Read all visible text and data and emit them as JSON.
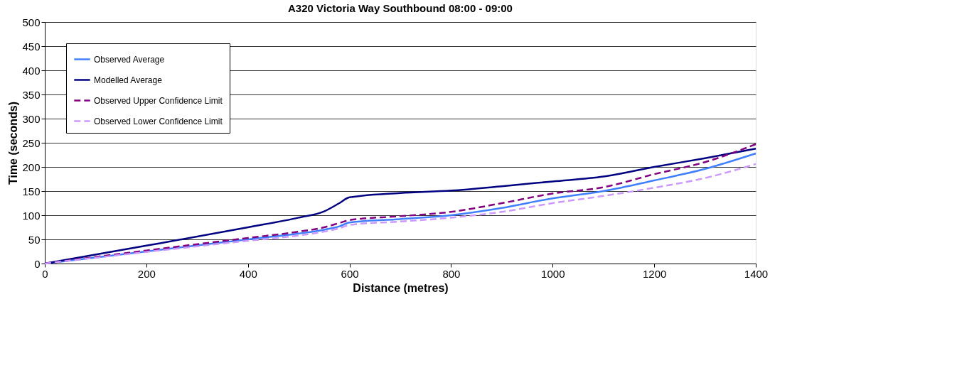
{
  "chart_data": {
    "type": "line",
    "title": "A320 Victoria Way Southbound 08:00  - 09:00",
    "xlabel": "Distance (metres)",
    "ylabel": "Time (seconds)",
    "x": [
      0,
      200,
      400,
      500,
      550,
      580,
      600,
      700,
      800,
      900,
      1000,
      1100,
      1200,
      1300,
      1400
    ],
    "series": [
      {
        "name": "Observed Average",
        "color": "#3f7fff",
        "line_style": "solid",
        "values": [
          0,
          25,
          50,
          62,
          70,
          77,
          85,
          92,
          100,
          115,
          135,
          150,
          172,
          196,
          228
        ]
      },
      {
        "name": "Modelled Average",
        "color": "#000080",
        "line_style": "solid",
        "values": [
          0,
          37,
          75,
          95,
          108,
          125,
          137,
          146,
          151,
          160,
          170,
          180,
          200,
          218,
          238
        ]
      },
      {
        "name": "Observed Upper Confidence Limit",
        "color": "#800080",
        "line_style": "dashed",
        "values": [
          0,
          27,
          53,
          66,
          75,
          84,
          90,
          98,
          107,
          125,
          145,
          158,
          185,
          210,
          247
        ]
      },
      {
        "name": "Observed Lower Confidence Limit",
        "color": "#cc99ff",
        "line_style": "dashed",
        "values": [
          0,
          24,
          47,
          58,
          66,
          73,
          80,
          87,
          95,
          107,
          125,
          140,
          157,
          177,
          206
        ]
      }
    ],
    "xlim": [
      0,
      1400
    ],
    "xticks": [
      0,
      200,
      400,
      600,
      800,
      1000,
      1200,
      1400
    ],
    "ylim": [
      0,
      500
    ],
    "yticks": [
      0,
      50,
      100,
      150,
      200,
      250,
      300,
      350,
      400,
      450,
      500
    ],
    "grid": "y",
    "legend": "top left"
  }
}
